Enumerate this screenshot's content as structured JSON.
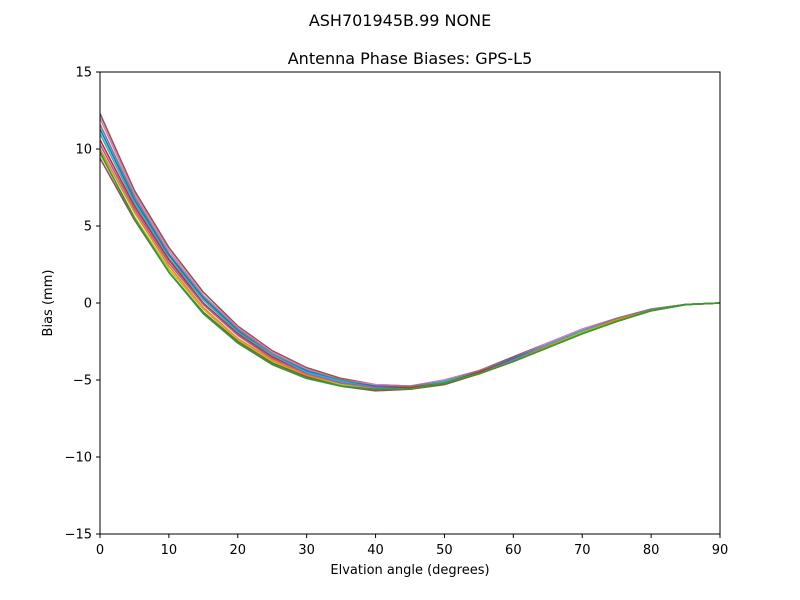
{
  "chart_data": {
    "type": "line",
    "suptitle": "ASH701945B.99   NONE",
    "title": "Antenna Phase Biases: GPS-L5",
    "xlabel": "Elvation angle (degrees)",
    "ylabel": "Bias (mm)",
    "xlim": [
      0,
      90
    ],
    "ylim": [
      -15,
      15
    ],
    "xticks": [
      0,
      10,
      20,
      30,
      40,
      50,
      60,
      70,
      80,
      90
    ],
    "yticks": [
      -15,
      -10,
      -5,
      0,
      5,
      10,
      15
    ],
    "ytick_labels": [
      "−15",
      "−10",
      "−5",
      "0",
      "5",
      "10",
      "15"
    ],
    "grid": false,
    "legend": "none",
    "x": [
      0,
      5,
      10,
      15,
      20,
      25,
      30,
      35,
      40,
      45,
      50,
      55,
      60,
      65,
      70,
      75,
      80,
      85,
      90
    ],
    "series": [
      {
        "color": "#8c564b",
        "values": [
          12.3,
          7.3,
          3.6,
          0.7,
          -1.5,
          -3.1,
          -4.2,
          -4.9,
          -5.3,
          -5.4,
          -5.0,
          -4.4,
          -3.5,
          -2.6,
          -1.7,
          -1.0,
          -0.4,
          -0.1,
          0.0
        ]
      },
      {
        "color": "#e377c2",
        "values": [
          12.0,
          7.1,
          3.4,
          0.5,
          -1.6,
          -3.2,
          -4.3,
          -5.0,
          -5.3,
          -5.4,
          -5.0,
          -4.4,
          -3.6,
          -2.6,
          -1.7,
          -1.0,
          -0.4,
          -0.1,
          0.0
        ]
      },
      {
        "color": "#7f7f7f",
        "values": [
          11.6,
          6.9,
          3.2,
          0.4,
          -1.7,
          -3.3,
          -4.4,
          -5.0,
          -5.4,
          -5.4,
          -5.1,
          -4.4,
          -3.6,
          -2.7,
          -1.8,
          -1.0,
          -0.4,
          -0.1,
          0.0
        ]
      },
      {
        "color": "#1f77b4",
        "values": [
          11.3,
          6.7,
          3.1,
          0.3,
          -1.8,
          -3.4,
          -4.4,
          -5.1,
          -5.4,
          -5.5,
          -5.1,
          -4.5,
          -3.6,
          -2.7,
          -1.8,
          -1.1,
          -0.5,
          -0.1,
          0.0
        ]
      },
      {
        "color": "#17becf",
        "values": [
          11.0,
          6.5,
          2.9,
          0.2,
          -1.9,
          -3.4,
          -4.5,
          -5.1,
          -5.5,
          -5.5,
          -5.1,
          -4.5,
          -3.7,
          -2.7,
          -1.8,
          -1.1,
          -0.5,
          -0.1,
          0.0
        ]
      },
      {
        "color": "#d62728",
        "values": [
          10.6,
          6.3,
          2.8,
          0.0,
          -2.0,
          -3.5,
          -4.6,
          -5.2,
          -5.5,
          -5.5,
          -5.2,
          -4.5,
          -3.7,
          -2.8,
          -1.9,
          -1.1,
          -0.5,
          -0.1,
          0.0
        ]
      },
      {
        "color": "#9467bd",
        "values": [
          10.3,
          6.1,
          2.6,
          -0.1,
          -2.1,
          -3.6,
          -4.6,
          -5.2,
          -5.5,
          -5.6,
          -5.2,
          -4.6,
          -3.7,
          -2.8,
          -1.9,
          -1.1,
          -0.5,
          -0.1,
          0.0
        ]
      },
      {
        "color": "#ff7f0e",
        "values": [
          10.0,
          5.9,
          2.4,
          -0.3,
          -2.3,
          -3.7,
          -4.7,
          -5.3,
          -5.6,
          -5.6,
          -5.2,
          -4.6,
          -3.8,
          -2.8,
          -1.9,
          -1.1,
          -0.5,
          -0.1,
          0.0
        ]
      },
      {
        "color": "#bcbd22",
        "values": [
          9.7,
          5.6,
          2.2,
          -0.4,
          -2.4,
          -3.8,
          -4.8,
          -5.3,
          -5.6,
          -5.6,
          -5.2,
          -4.6,
          -3.8,
          -2.9,
          -1.9,
          -1.2,
          -0.5,
          -0.1,
          0.0
        ]
      },
      {
        "color": "#8c564b",
        "values": [
          9.4,
          5.4,
          2.0,
          -0.6,
          -2.5,
          -3.9,
          -4.8,
          -5.4,
          -5.7,
          -5.6,
          -5.3,
          -4.6,
          -3.8,
          -2.9,
          -2.0,
          -1.2,
          -0.5,
          -0.1,
          0.0
        ]
      },
      {
        "color": "#2ca02c",
        "values": [
          9.8,
          5.5,
          2.0,
          -0.7,
          -2.6,
          -4.0,
          -4.9,
          -5.4,
          -5.6,
          -5.6,
          -5.2,
          -4.6,
          -3.8,
          -2.9,
          -2.0,
          -1.2,
          -0.5,
          -0.1,
          0.0
        ]
      }
    ]
  }
}
